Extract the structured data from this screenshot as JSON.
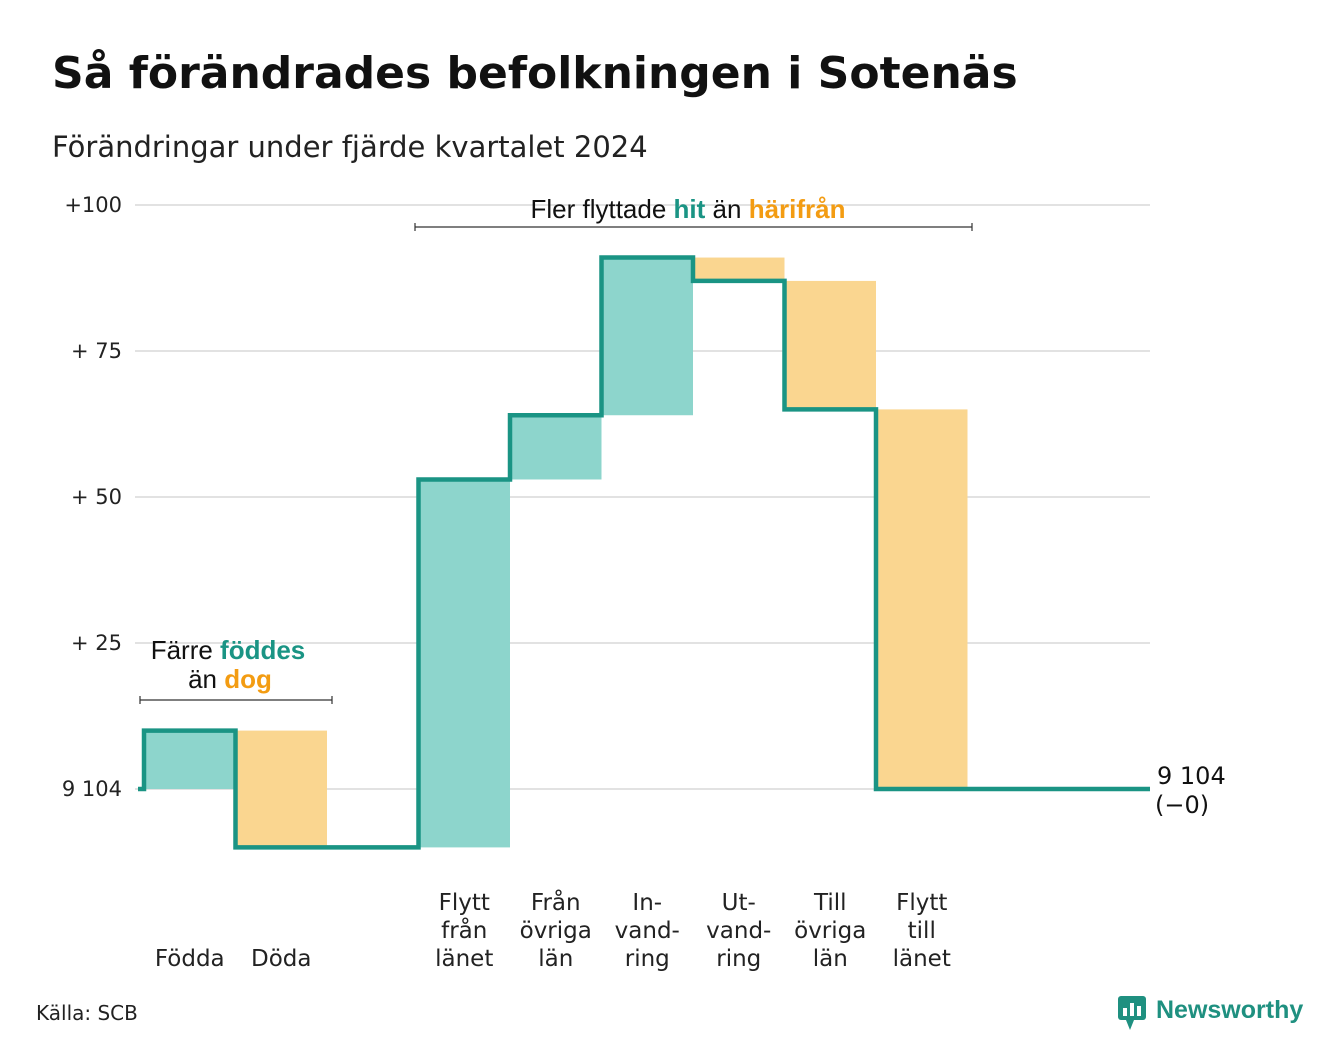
{
  "title": "Så förändrades befolkningen i Sotenäs",
  "subtitle": "Förändringar under fjärde kvartalet 2024",
  "source": "Källa: SCB",
  "brand": "Newsworthy",
  "colors": {
    "increase_fill": "#8dd5cc",
    "decrease_fill": "#fad690",
    "line": "#1a9484",
    "teal_text": "#1a9484",
    "orange_text": "#f39c12",
    "grid": "#e2e2e2",
    "brand": "#1f9080"
  },
  "annotations": {
    "natural": {
      "line1_pre": "Färre ",
      "line1_hl": "föddes",
      "line2_pre": "än ",
      "line2_hl": "dog"
    },
    "migration": {
      "pre": "Fler flyttade ",
      "hl1": "hit",
      "mid": " än ",
      "hl2": "härifrån"
    }
  },
  "end_label": {
    "value": "9 104",
    "change": "(−0)"
  },
  "chart_data": {
    "type": "waterfall",
    "baseline_population": 9104,
    "ylim": [
      -10,
      100
    ],
    "yticks": [
      {
        "value": 0,
        "label": "9 104"
      },
      {
        "value": 25,
        "label": "+ 25"
      },
      {
        "value": 50,
        "label": "+ 50"
      },
      {
        "value": 75,
        "label": "+ 75"
      },
      {
        "value": 100,
        "label": "+100"
      }
    ],
    "steps": [
      {
        "label": [
          "Födda"
        ],
        "kind": "increase",
        "from": 0,
        "to": 10
      },
      {
        "label": [
          "Döda"
        ],
        "kind": "decrease",
        "from": 10,
        "to": -10
      },
      {
        "label": [],
        "kind": "gap",
        "from": -10,
        "to": -10
      },
      {
        "label": [
          "Flytt",
          "från",
          "länet"
        ],
        "kind": "increase",
        "from": -10,
        "to": 53
      },
      {
        "label": [
          "Från",
          "övriga",
          "län"
        ],
        "kind": "increase",
        "from": 53,
        "to": 64
      },
      {
        "label": [
          "In-",
          "vand-",
          "ring"
        ],
        "kind": "increase",
        "from": 64,
        "to": 91
      },
      {
        "label": [
          "Ut-",
          "vand-",
          "ring"
        ],
        "kind": "decrease",
        "from": 91,
        "to": 87
      },
      {
        "label": [
          "Till",
          "övriga",
          "län"
        ],
        "kind": "decrease",
        "from": 87,
        "to": 65
      },
      {
        "label": [
          "Flytt",
          "till",
          "länet"
        ],
        "kind": "decrease",
        "from": 65,
        "to": 0
      }
    ],
    "grid": true
  }
}
